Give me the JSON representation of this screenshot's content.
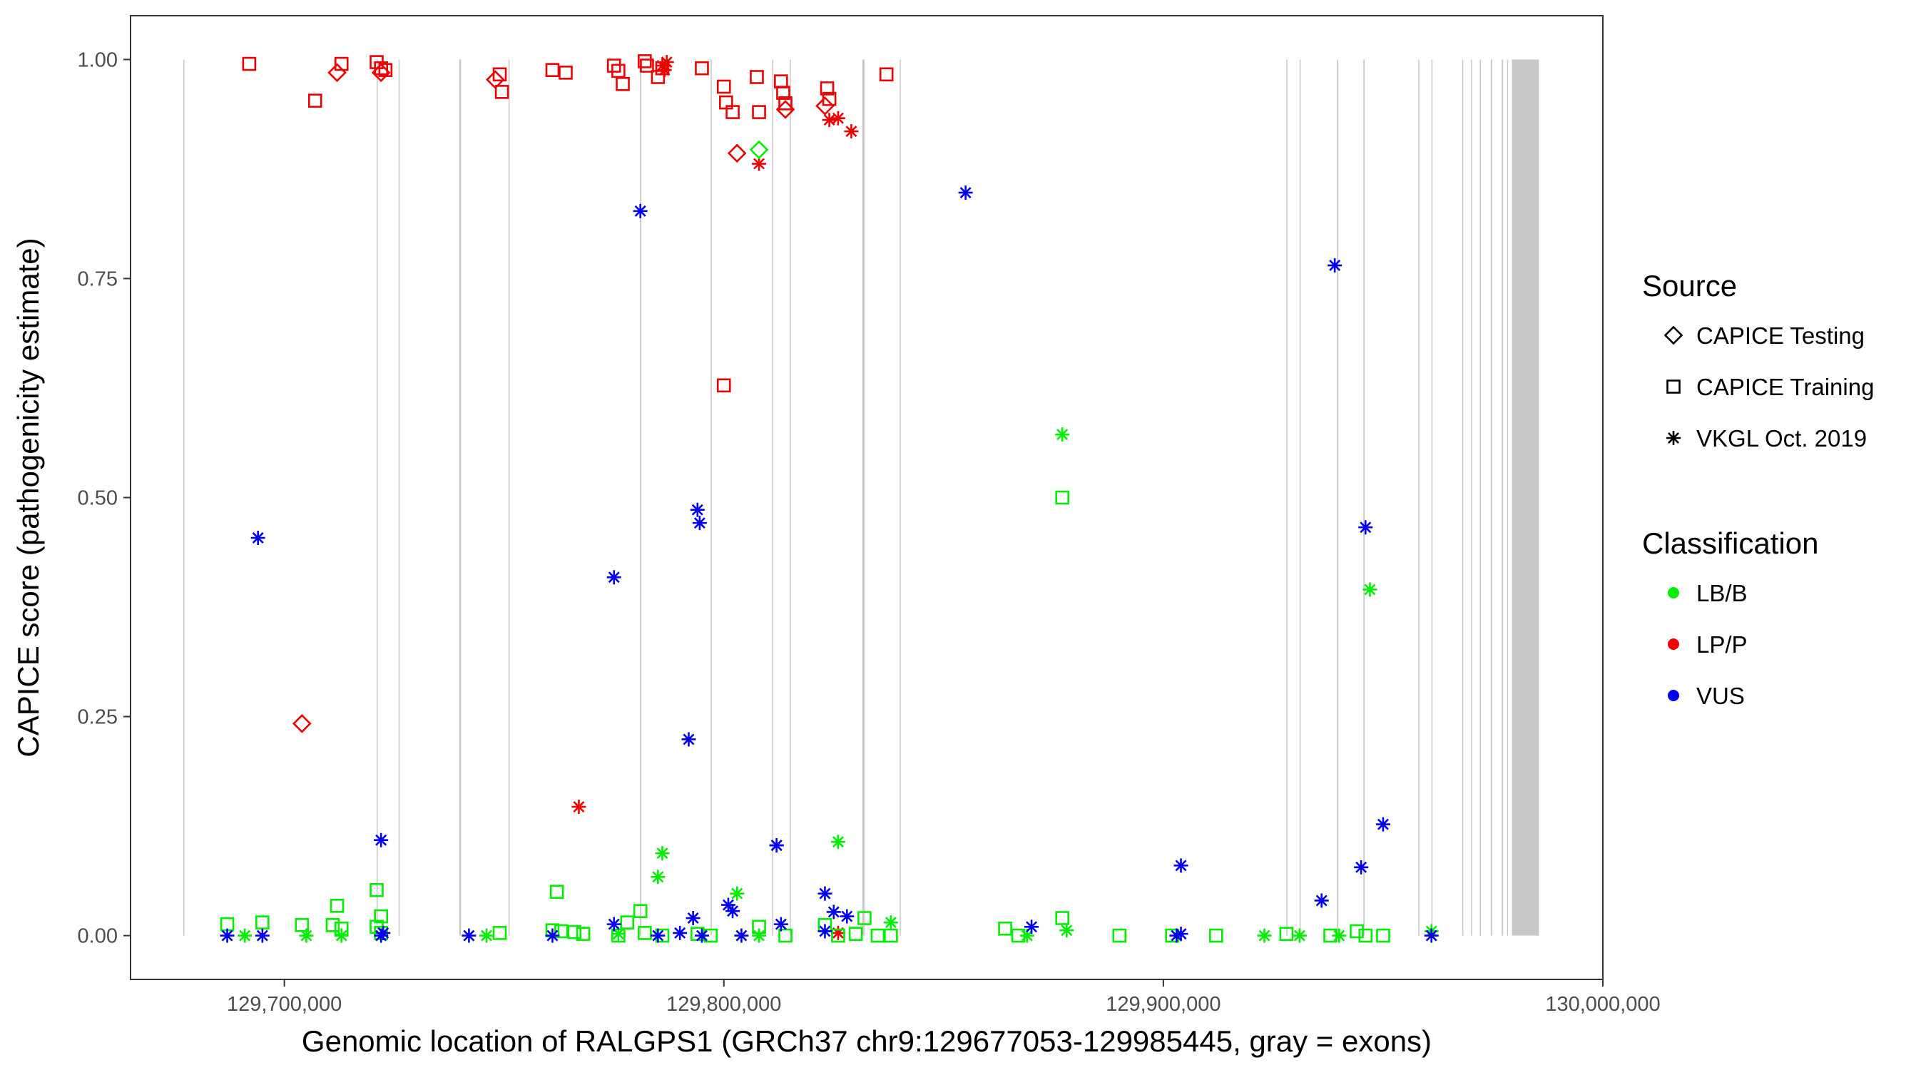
{
  "chart_data": {
    "type": "scatter",
    "title": "",
    "xlabel": "Genomic location of RALGPS1 (GRCh37 chr9:129677053-129985445, gray = exons)",
    "ylabel": "CAPICE score (pathogenicity estimate)",
    "xlim": [
      129665000,
      130000000
    ],
    "ylim": [
      -0.05,
      1.05
    ],
    "x_ticks": [
      129700000,
      129800000,
      129900000,
      130000000
    ],
    "x_tick_labels": [
      "129,700,000",
      "129,800,000",
      "129,900,000",
      "130,000,000"
    ],
    "y_ticks": [
      0,
      0.25,
      0.5,
      0.75,
      1.0
    ],
    "y_tick_labels": [
      "0.00",
      "0.25",
      "0.50",
      "0.75",
      "1.00"
    ],
    "exons": [
      {
        "start": 129677000,
        "end": 129677200
      },
      {
        "start": 129721000,
        "end": 129721200
      },
      {
        "start": 129726000,
        "end": 129726200
      },
      {
        "start": 129739800,
        "end": 129740200
      },
      {
        "start": 129751000,
        "end": 129751200
      },
      {
        "start": 129780900,
        "end": 129781200
      },
      {
        "start": 129797000,
        "end": 129797200
      },
      {
        "start": 129811000,
        "end": 129811200
      },
      {
        "start": 129815000,
        "end": 129815200
      },
      {
        "start": 129831500,
        "end": 129832000
      },
      {
        "start": 129840000,
        "end": 129840200
      },
      {
        "start": 129928000,
        "end": 129928200
      },
      {
        "start": 129931000,
        "end": 129931200
      },
      {
        "start": 129939500,
        "end": 129939800
      },
      {
        "start": 129945500,
        "end": 129945800
      },
      {
        "start": 129958000,
        "end": 129958200
      },
      {
        "start": 129961000,
        "end": 129961200
      },
      {
        "start": 129968000,
        "end": 129968200
      },
      {
        "start": 129970000,
        "end": 129970200
      },
      {
        "start": 129972000,
        "end": 129972200
      },
      {
        "start": 129974500,
        "end": 129974800
      },
      {
        "start": 129977000,
        "end": 129977300
      },
      {
        "start": 129978200,
        "end": 129978400
      },
      {
        "start": 129979300,
        "end": 129985445
      }
    ],
    "legend": {
      "source_title": "Source",
      "source_items": [
        {
          "label": "CAPICE Testing",
          "shape": "diamond"
        },
        {
          "label": "CAPICE Training",
          "shape": "square"
        },
        {
          "label": "VKGL Oct. 2019",
          "shape": "asterisk"
        }
      ],
      "class_title": "Classification",
      "class_items": [
        {
          "label": "LB/B",
          "color": "#00ee00"
        },
        {
          "label": "LP/P",
          "color": "#ee0000"
        },
        {
          "label": "VUS",
          "color": "#0000ee"
        }
      ]
    },
    "series": [
      {
        "name": "CAPICE Training - LP/P",
        "shape": "square",
        "color": "#ee0000",
        "x": [
          129692000,
          129707000,
          129713000,
          129721000,
          129722000,
          129723000,
          129749000,
          129749500,
          129761000,
          129764000,
          129775000,
          129776000,
          129777000,
          129782000,
          129782500,
          129785000,
          129786000,
          129795000,
          129800000,
          129800500,
          129802000,
          129807500,
          129808000,
          129813000,
          129813500,
          129814000,
          129823500,
          129824000,
          129837000,
          129800000
        ],
        "y": [
          0.995,
          0.953,
          0.995,
          0.997,
          0.99,
          0.988,
          0.983,
          0.963,
          0.988,
          0.985,
          0.993,
          0.987,
          0.972,
          0.998,
          0.993,
          0.98,
          0.99,
          0.99,
          0.969,
          0.951,
          0.94,
          0.98,
          0.94,
          0.975,
          0.962,
          0.95,
          0.967,
          0.955,
          0.983,
          0.628
        ]
      },
      {
        "name": "CAPICE Testing - LP/P",
        "shape": "diamond",
        "color": "#ee0000",
        "x": [
          129712000,
          129722000,
          129748000,
          129803000,
          129814000,
          129823000,
          129704000
        ],
        "y": [
          0.985,
          0.985,
          0.977,
          0.893,
          0.943,
          0.947,
          0.242
        ]
      },
      {
        "name": "VKGL - LP/P",
        "shape": "asterisk",
        "color": "#ee0000",
        "x": [
          129786000,
          129787000,
          129786500,
          129808000,
          129824000,
          129826000,
          129829000,
          129767000,
          129826000
        ],
        "y": [
          0.993,
          0.997,
          0.988,
          0.881,
          0.931,
          0.933,
          0.918,
          0.147,
          0.003
        ]
      },
      {
        "name": "CAPICE Testing - LB/B",
        "shape": "diamond",
        "color": "#00ee00",
        "x": [
          129808000
        ],
        "y": [
          0.897
        ]
      },
      {
        "name": "CAPICE Training - LB/B",
        "shape": "square",
        "color": "#00ee00",
        "x": [
          129687000,
          129695000,
          129704000,
          129711000,
          129712000,
          129713000,
          129721000,
          129722000,
          129749000,
          129762000,
          129763000,
          129766000,
          129768000,
          129776000,
          129778000,
          129781000,
          129786000,
          129794000,
          129797000,
          129808000,
          129814000,
          129823000,
          129826000,
          129830000,
          129832000,
          129835000,
          129838000,
          129864000,
          129867000,
          129877000,
          129877000,
          129890000,
          129902000,
          129912000,
          129928000,
          129938000,
          129944000,
          129946000,
          129950000,
          129721000,
          129722000,
          129761000,
          129782000
        ],
        "y": [
          0.013,
          0.015,
          0.012,
          0.012,
          0.034,
          0.008,
          0.052,
          0.022,
          0.003,
          0.05,
          0.005,
          0.004,
          0.002,
          0.0,
          0.015,
          0.028,
          0.0,
          0.002,
          0.0,
          0.01,
          0.0,
          0.012,
          0.0,
          0.002,
          0.02,
          0.0,
          0.0,
          0.008,
          0.0,
          0.02,
          0.5,
          0.0,
          0.0,
          0.0,
          0.002,
          0.0,
          0.005,
          0.0,
          0.0,
          0.01,
          0.003,
          0.006,
          0.003
        ]
      },
      {
        "name": "VKGL - LB/B",
        "shape": "asterisk",
        "color": "#00ee00",
        "x": [
          129691000,
          129705000,
          129713000,
          129746000,
          129786000,
          129785000,
          129803000,
          129826000,
          129838000,
          129869000,
          129878000,
          129877000,
          129923000,
          129931000,
          129940000,
          129947000,
          129961000,
          129776000,
          129808000
        ],
        "y": [
          0.0,
          0.0,
          0.0,
          0.0,
          0.094,
          0.067,
          0.048,
          0.107,
          0.015,
          0.0,
          0.006,
          0.572,
          0.0,
          0.0,
          0.0,
          0.395,
          0.005,
          0.002,
          0.0
        ]
      },
      {
        "name": "VKGL - VUS",
        "shape": "asterisk",
        "color": "#0000ee",
        "x": [
          129687000,
          129695000,
          129722000,
          129722500,
          129742000,
          129761000,
          129775000,
          129785000,
          129790000,
          129793000,
          129795000,
          129801000,
          129802000,
          129804000,
          129812000,
          129813000,
          129823000,
          129825000,
          129828000,
          129870000,
          129903000,
          129904000,
          129961000,
          129694000,
          129722000,
          129775000,
          129781000,
          129792000,
          129794000,
          129794500,
          129812000,
          129823000,
          129855000,
          129904000,
          129936000,
          129939000,
          129945000,
          129946000,
          129950000
        ],
        "y": [
          0.0,
          0.0,
          0.0,
          0.003,
          0.0,
          0.0,
          0.013,
          0.0,
          0.003,
          0.02,
          0.0,
          0.035,
          0.028,
          0.0,
          0.103,
          0.013,
          0.048,
          0.027,
          0.022,
          0.01,
          0.0,
          0.002,
          0.0,
          0.454,
          0.109,
          0.409,
          0.827,
          0.224,
          0.486,
          0.471,
          0.103,
          0.005,
          0.848,
          0.08,
          0.04,
          0.765,
          0.078,
          0.466,
          0.127
        ]
      }
    ]
  }
}
